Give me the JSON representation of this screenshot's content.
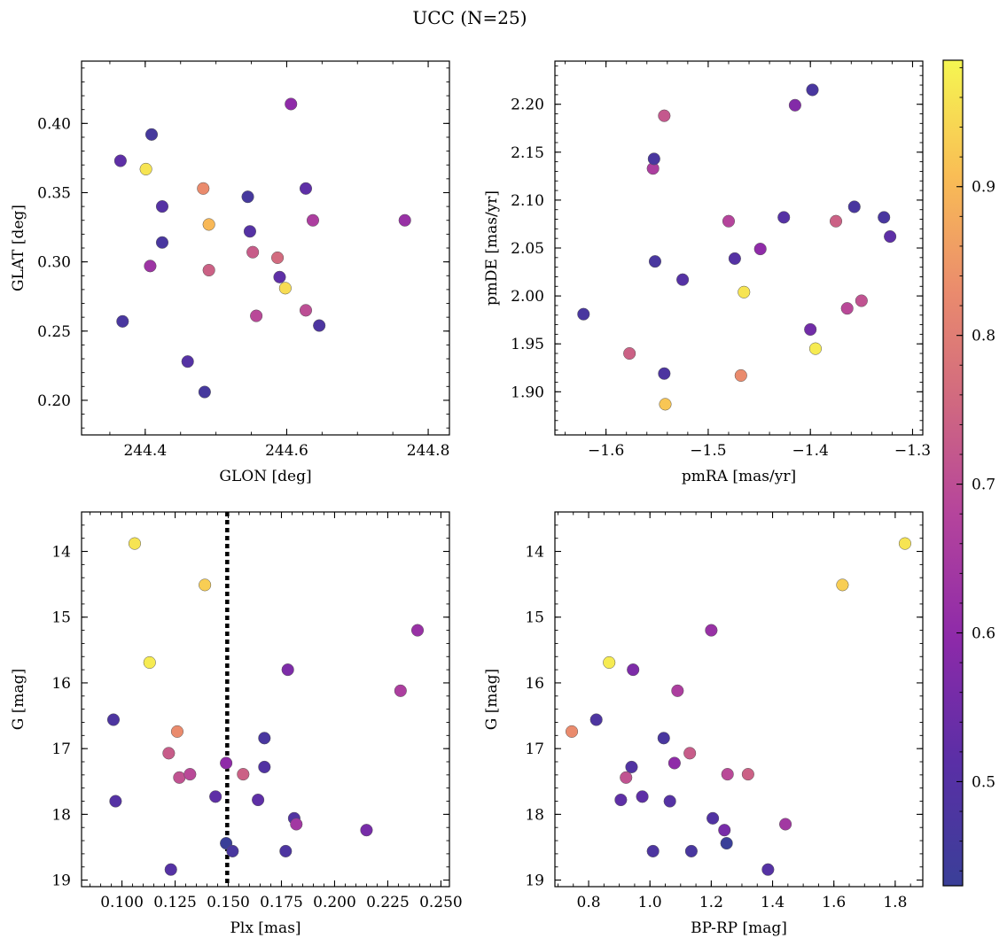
{
  "figure": {
    "title": "UCC (N=25)"
  },
  "colorbar": {
    "colormap": "plasma",
    "range": [
      0.43,
      0.985
    ],
    "ticks": [
      0.5,
      0.6,
      0.7,
      0.8,
      0.9
    ],
    "tick_labels": [
      "0.5",
      "0.6",
      "0.7",
      "0.8",
      "0.9"
    ]
  },
  "chart_data": [
    {
      "type": "scatter",
      "panel": "top-left",
      "xlabel": "GLON [deg]",
      "ylabel": "GLAT [deg]",
      "xlim": [
        244.31,
        244.83
      ],
      "ylim": [
        0.175,
        0.445
      ],
      "xticks": [
        244.4,
        244.6,
        244.8
      ],
      "xtick_labels": [
        "244.4",
        "244.6",
        "244.8"
      ],
      "yticks": [
        0.2,
        0.25,
        0.3,
        0.35,
        0.4
      ],
      "ytick_labels": [
        "0.20",
        "0.25",
        "0.30",
        "0.35",
        "0.40"
      ],
      "x_minor_step": 0.05,
      "y_minor_step": 0.01,
      "points": [
        {
          "x": 244.365,
          "y": 0.373,
          "c": 0.52
        },
        {
          "x": 244.368,
          "y": 0.257,
          "c": 0.47
        },
        {
          "x": 244.401,
          "y": 0.367,
          "c": 0.96
        },
        {
          "x": 244.407,
          "y": 0.297,
          "c": 0.63
        },
        {
          "x": 244.409,
          "y": 0.392,
          "c": 0.46
        },
        {
          "x": 244.424,
          "y": 0.34,
          "c": 0.5
        },
        {
          "x": 244.424,
          "y": 0.314,
          "c": 0.47
        },
        {
          "x": 244.46,
          "y": 0.228,
          "c": 0.5
        },
        {
          "x": 244.482,
          "y": 0.353,
          "c": 0.83
        },
        {
          "x": 244.484,
          "y": 0.206,
          "c": 0.46
        },
        {
          "x": 244.49,
          "y": 0.327,
          "c": 0.9
        },
        {
          "x": 244.49,
          "y": 0.294,
          "c": 0.74
        },
        {
          "x": 244.545,
          "y": 0.347,
          "c": 0.46
        },
        {
          "x": 244.548,
          "y": 0.322,
          "c": 0.5
        },
        {
          "x": 244.552,
          "y": 0.307,
          "c": 0.73
        },
        {
          "x": 244.557,
          "y": 0.261,
          "c": 0.69
        },
        {
          "x": 244.587,
          "y": 0.303,
          "c": 0.76
        },
        {
          "x": 244.59,
          "y": 0.289,
          "c": 0.52
        },
        {
          "x": 244.598,
          "y": 0.281,
          "c": 0.95
        },
        {
          "x": 244.606,
          "y": 0.414,
          "c": 0.6
        },
        {
          "x": 244.627,
          "y": 0.353,
          "c": 0.52
        },
        {
          "x": 244.627,
          "y": 0.265,
          "c": 0.7
        },
        {
          "x": 244.637,
          "y": 0.33,
          "c": 0.66
        },
        {
          "x": 244.646,
          "y": 0.254,
          "c": 0.48
        },
        {
          "x": 244.767,
          "y": 0.33,
          "c": 0.62
        }
      ]
    },
    {
      "type": "scatter",
      "panel": "top-right",
      "xlabel": "pmRA [mas/yr]",
      "ylabel": "pmDE [mas/yr]",
      "xlim": [
        -1.65,
        -1.29
      ],
      "ylim": [
        1.855,
        2.245
      ],
      "xticks": [
        -1.6,
        -1.5,
        -1.4,
        -1.3
      ],
      "xtick_labels": [
        "−1.6",
        "−1.5",
        "−1.4",
        "−1.3"
      ],
      "yticks": [
        1.9,
        1.95,
        2.0,
        2.05,
        2.1,
        2.15,
        2.2
      ],
      "ytick_labels": [
        "1.90",
        "1.95",
        "2.00",
        "2.05",
        "2.10",
        "2.15",
        "2.20"
      ],
      "x_minor_step": 0.02,
      "y_minor_step": 0.01,
      "points": [
        {
          "x": -1.622,
          "y": 1.981,
          "c": 0.47
        },
        {
          "x": -1.577,
          "y": 1.94,
          "c": 0.74
        },
        {
          "x": -1.554,
          "y": 2.133,
          "c": 0.66
        },
        {
          "x": -1.553,
          "y": 2.143,
          "c": 0.47
        },
        {
          "x": -1.552,
          "y": 2.036,
          "c": 0.47
        },
        {
          "x": -1.543,
          "y": 2.188,
          "c": 0.72
        },
        {
          "x": -1.543,
          "y": 1.919,
          "c": 0.48
        },
        {
          "x": -1.542,
          "y": 1.887,
          "c": 0.92
        },
        {
          "x": -1.525,
          "y": 2.017,
          "c": 0.5
        },
        {
          "x": -1.48,
          "y": 2.078,
          "c": 0.68
        },
        {
          "x": -1.474,
          "y": 2.039,
          "c": 0.5
        },
        {
          "x": -1.468,
          "y": 1.917,
          "c": 0.83
        },
        {
          "x": -1.465,
          "y": 2.004,
          "c": 0.96
        },
        {
          "x": -1.449,
          "y": 2.049,
          "c": 0.6
        },
        {
          "x": -1.426,
          "y": 2.082,
          "c": 0.5
        },
        {
          "x": -1.415,
          "y": 2.199,
          "c": 0.58
        },
        {
          "x": -1.4,
          "y": 1.965,
          "c": 0.55
        },
        {
          "x": -1.398,
          "y": 2.215,
          "c": 0.47
        },
        {
          "x": -1.395,
          "y": 1.945,
          "c": 0.97
        },
        {
          "x": -1.375,
          "y": 2.078,
          "c": 0.74
        },
        {
          "x": -1.364,
          "y": 1.987,
          "c": 0.69
        },
        {
          "x": -1.357,
          "y": 2.093,
          "c": 0.47
        },
        {
          "x": -1.35,
          "y": 1.995,
          "c": 0.71
        },
        {
          "x": -1.328,
          "y": 2.082,
          "c": 0.47
        },
        {
          "x": -1.322,
          "y": 2.062,
          "c": 0.52
        }
      ]
    },
    {
      "type": "scatter",
      "panel": "bottom-left",
      "xlabel": "Plx [mas]",
      "ylabel": "G [mag]",
      "xlim": [
        0.081,
        0.254
      ],
      "ylim": [
        19.1,
        13.4
      ],
      "y_inverted": true,
      "xticks": [
        0.1,
        0.125,
        0.15,
        0.175,
        0.2,
        0.225,
        0.25
      ],
      "xtick_labels": [
        "0.100",
        "0.125",
        "0.150",
        "0.175",
        "0.200",
        "0.225",
        "0.250"
      ],
      "yticks": [
        14,
        15,
        16,
        17,
        18,
        19
      ],
      "ytick_labels": [
        "14",
        "15",
        "16",
        "17",
        "18",
        "19"
      ],
      "x_minor_step": 0.005,
      "y_minor_step": 0.2,
      "vline": {
        "x": 0.1495,
        "style": "dotted"
      },
      "points": [
        {
          "x": 0.096,
          "y": 16.56,
          "c": 0.48
        },
        {
          "x": 0.097,
          "y": 17.8,
          "c": 0.5
        },
        {
          "x": 0.106,
          "y": 13.88,
          "c": 0.96
        },
        {
          "x": 0.113,
          "y": 15.69,
          "c": 0.97
        },
        {
          "x": 0.122,
          "y": 17.07,
          "c": 0.73
        },
        {
          "x": 0.126,
          "y": 16.74,
          "c": 0.83
        },
        {
          "x": 0.127,
          "y": 17.44,
          "c": 0.71
        },
        {
          "x": 0.123,
          "y": 18.84,
          "c": 0.5
        },
        {
          "x": 0.132,
          "y": 17.39,
          "c": 0.69
        },
        {
          "x": 0.139,
          "y": 14.51,
          "c": 0.93
        },
        {
          "x": 0.144,
          "y": 17.73,
          "c": 0.52
        },
        {
          "x": 0.149,
          "y": 17.22,
          "c": 0.6
        },
        {
          "x": 0.149,
          "y": 18.44,
          "c": 0.43
        },
        {
          "x": 0.152,
          "y": 18.56,
          "c": 0.47
        },
        {
          "x": 0.157,
          "y": 17.39,
          "c": 0.74
        },
        {
          "x": 0.164,
          "y": 17.78,
          "c": 0.52
        },
        {
          "x": 0.167,
          "y": 16.84,
          "c": 0.47
        },
        {
          "x": 0.167,
          "y": 17.28,
          "c": 0.49
        },
        {
          "x": 0.177,
          "y": 18.56,
          "c": 0.48
        },
        {
          "x": 0.178,
          "y": 15.8,
          "c": 0.57
        },
        {
          "x": 0.181,
          "y": 18.06,
          "c": 0.49
        },
        {
          "x": 0.182,
          "y": 18.15,
          "c": 0.64
        },
        {
          "x": 0.215,
          "y": 18.24,
          "c": 0.56
        },
        {
          "x": 0.231,
          "y": 16.12,
          "c": 0.66
        },
        {
          "x": 0.239,
          "y": 15.2,
          "c": 0.62
        }
      ]
    },
    {
      "type": "scatter",
      "panel": "bottom-right",
      "xlabel": "BP-RP [mag]",
      "ylabel": "G [mag]",
      "xlim": [
        0.69,
        1.89
      ],
      "ylim": [
        19.1,
        13.4
      ],
      "y_inverted": true,
      "xticks": [
        0.8,
        1.0,
        1.2,
        1.4,
        1.6,
        1.8
      ],
      "xtick_labels": [
        "0.8",
        "1.0",
        "1.2",
        "1.4",
        "1.6",
        "1.8"
      ],
      "yticks": [
        14,
        15,
        16,
        17,
        18,
        19
      ],
      "ytick_labels": [
        "14",
        "15",
        "16",
        "17",
        "18",
        "19"
      ],
      "x_minor_step": 0.05,
      "y_minor_step": 0.2,
      "points": [
        {
          "x": 0.745,
          "y": 16.74,
          "c": 0.83
        },
        {
          "x": 0.825,
          "y": 16.56,
          "c": 0.48
        },
        {
          "x": 0.867,
          "y": 15.69,
          "c": 0.97
        },
        {
          "x": 0.905,
          "y": 17.78,
          "c": 0.52
        },
        {
          "x": 0.922,
          "y": 17.44,
          "c": 0.71
        },
        {
          "x": 0.94,
          "y": 17.28,
          "c": 0.49
        },
        {
          "x": 0.945,
          "y": 15.8,
          "c": 0.57
        },
        {
          "x": 0.975,
          "y": 17.73,
          "c": 0.52
        },
        {
          "x": 1.01,
          "y": 18.56,
          "c": 0.48
        },
        {
          "x": 1.045,
          "y": 16.84,
          "c": 0.47
        },
        {
          "x": 1.065,
          "y": 17.8,
          "c": 0.5
        },
        {
          "x": 1.08,
          "y": 17.22,
          "c": 0.6
        },
        {
          "x": 1.09,
          "y": 16.12,
          "c": 0.66
        },
        {
          "x": 1.13,
          "y": 17.07,
          "c": 0.73
        },
        {
          "x": 1.135,
          "y": 18.56,
          "c": 0.47
        },
        {
          "x": 1.2,
          "y": 15.2,
          "c": 0.62
        },
        {
          "x": 1.205,
          "y": 18.06,
          "c": 0.49
        },
        {
          "x": 1.243,
          "y": 18.24,
          "c": 0.56
        },
        {
          "x": 1.25,
          "y": 18.44,
          "c": 0.43
        },
        {
          "x": 1.253,
          "y": 17.39,
          "c": 0.69
        },
        {
          "x": 1.32,
          "y": 17.39,
          "c": 0.74
        },
        {
          "x": 1.385,
          "y": 18.84,
          "c": 0.5
        },
        {
          "x": 1.442,
          "y": 18.15,
          "c": 0.64
        },
        {
          "x": 1.628,
          "y": 14.51,
          "c": 0.93
        },
        {
          "x": 1.832,
          "y": 13.88,
          "c": 0.96
        }
      ]
    }
  ]
}
